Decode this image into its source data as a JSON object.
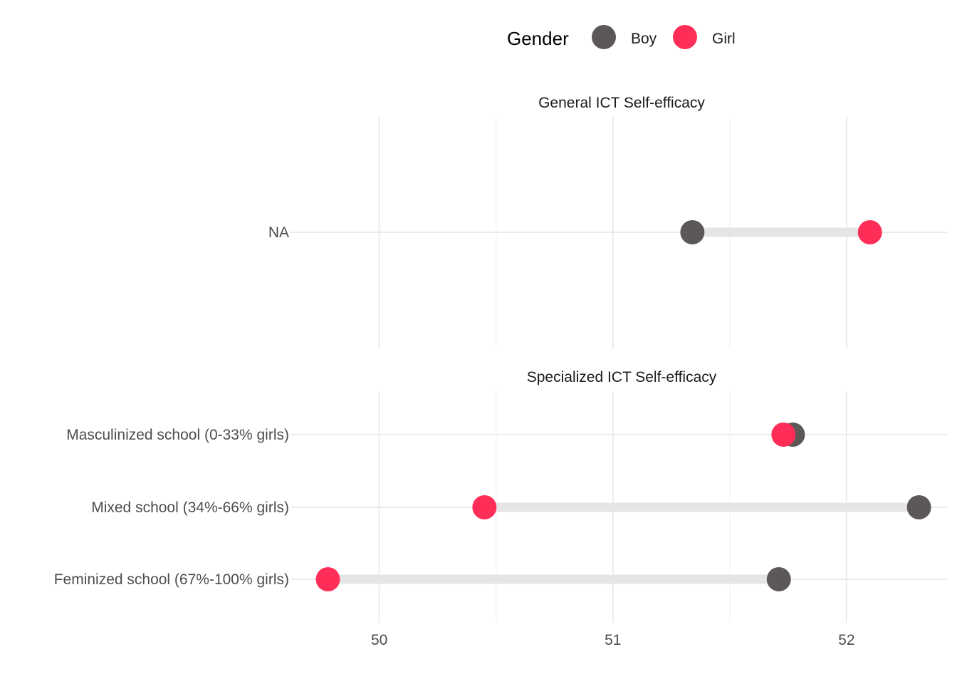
{
  "chart_data": {
    "type": "dumbbell",
    "legend": {
      "title": "Gender",
      "position": "top",
      "entries": [
        {
          "name": "Boy",
          "color": "#5d5858"
        },
        {
          "name": "Girl",
          "color": "#ff2e58"
        }
      ]
    },
    "xlim": [
      49.62,
      52.43
    ],
    "x_ticks": [
      50,
      51,
      52
    ],
    "x_tick_labels": [
      "50",
      "51",
      "52"
    ],
    "grid": true,
    "panels": [
      {
        "title": "General ICT Self-efficacy",
        "categories": [
          "NA"
        ],
        "series": [
          {
            "name": "Boy",
            "values": [
              51.34
            ]
          },
          {
            "name": "Girl",
            "values": [
              52.1
            ]
          }
        ]
      },
      {
        "title": "Specialized ICT Self-efficacy",
        "categories": [
          "Masculinized school (0-33% girls)",
          "Mixed school (34%-66% girls)",
          "Feminized school (67%-100% girls)"
        ],
        "series": [
          {
            "name": "Boy",
            "values": [
              51.77,
              52.31,
              51.71
            ]
          },
          {
            "name": "Girl",
            "values": [
              51.73,
              50.45,
              49.78
            ]
          }
        ]
      }
    ]
  }
}
